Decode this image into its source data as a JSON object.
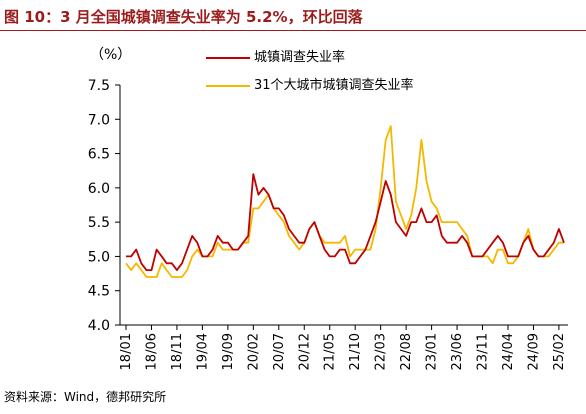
{
  "header": {
    "title": "图 10：3 月全国城镇调查失业率为 5.2%，环比回落"
  },
  "footer": {
    "source": "资料来源：Wind，德邦研究所"
  },
  "colors": {
    "title": "#9c1c1c",
    "series_urban": "#c00000",
    "series_31city": "#f5b800"
  },
  "chart_data": {
    "type": "line",
    "unit_label": "（%）",
    "ylim": [
      4.0,
      7.5
    ],
    "yticks": [
      "4.0",
      "4.5",
      "5.0",
      "5.5",
      "6.0",
      "6.5",
      "7.0",
      "7.5"
    ],
    "xticks": [
      "18/01",
      "18/06",
      "18/11",
      "19/04",
      "19/09",
      "20/02",
      "20/07",
      "20/12",
      "21/05",
      "21/10",
      "22/03",
      "22/08",
      "23/01",
      "23/06",
      "23/11",
      "24/04",
      "24/09",
      "25/02"
    ],
    "legend_position": "top-right",
    "grid": false,
    "x": [
      "18/01",
      "18/02",
      "18/03",
      "18/04",
      "18/05",
      "18/06",
      "18/07",
      "18/08",
      "18/09",
      "18/10",
      "18/11",
      "18/12",
      "19/01",
      "19/02",
      "19/03",
      "19/04",
      "19/05",
      "19/06",
      "19/07",
      "19/08",
      "19/09",
      "19/10",
      "19/11",
      "19/12",
      "20/01",
      "20/02",
      "20/03",
      "20/04",
      "20/05",
      "20/06",
      "20/07",
      "20/08",
      "20/09",
      "20/10",
      "20/11",
      "20/12",
      "21/01",
      "21/02",
      "21/03",
      "21/04",
      "21/05",
      "21/06",
      "21/07",
      "21/08",
      "21/09",
      "21/10",
      "21/11",
      "21/12",
      "22/01",
      "22/02",
      "22/03",
      "22/04",
      "22/05",
      "22/06",
      "22/07",
      "22/08",
      "22/09",
      "22/10",
      "22/11",
      "22/12",
      "23/01",
      "23/02",
      "23/03",
      "23/04",
      "23/05",
      "23/06",
      "23/07",
      "23/08",
      "23/09",
      "23/10",
      "23/11",
      "23/12",
      "24/01",
      "24/02",
      "24/03",
      "24/04",
      "24/05",
      "24/06",
      "24/07",
      "24/08",
      "24/09",
      "24/10",
      "24/11",
      "24/12",
      "25/01",
      "25/02",
      "25/03"
    ],
    "series": [
      {
        "name": "城镇调查失业率",
        "color": "#c00000",
        "values": [
          5.0,
          5.0,
          5.1,
          4.9,
          4.8,
          4.8,
          5.1,
          5.0,
          4.9,
          4.9,
          4.8,
          4.9,
          5.1,
          5.3,
          5.2,
          5.0,
          5.0,
          5.1,
          5.3,
          5.2,
          5.2,
          5.1,
          5.1,
          5.2,
          5.3,
          6.2,
          5.9,
          6.0,
          5.9,
          5.7,
          5.7,
          5.6,
          5.4,
          5.3,
          5.2,
          5.2,
          5.4,
          5.5,
          5.3,
          5.1,
          5.0,
          5.0,
          5.1,
          5.1,
          4.9,
          4.9,
          5.0,
          5.1,
          5.3,
          5.5,
          5.8,
          6.1,
          5.9,
          5.5,
          5.4,
          5.3,
          5.5,
          5.5,
          5.7,
          5.5,
          5.5,
          5.6,
          5.3,
          5.2,
          5.2,
          5.2,
          5.3,
          5.2,
          5.0,
          5.0,
          5.0,
          5.1,
          5.2,
          5.3,
          5.2,
          5.0,
          5.0,
          5.0,
          5.2,
          5.3,
          5.1,
          5.0,
          5.0,
          5.1,
          5.2,
          5.4,
          5.2
        ]
      },
      {
        "name": "31个大城市城镇调查失业率",
        "color": "#f5b800",
        "values": [
          4.9,
          4.8,
          4.9,
          4.8,
          4.7,
          4.7,
          4.7,
          4.9,
          4.8,
          4.7,
          4.7,
          4.7,
          4.8,
          5.0,
          5.1,
          5.0,
          5.0,
          5.0,
          5.2,
          5.1,
          5.1,
          5.1,
          5.1,
          5.2,
          5.2,
          5.7,
          5.7,
          5.8,
          5.9,
          5.7,
          5.6,
          5.5,
          5.3,
          5.2,
          5.1,
          5.2,
          5.4,
          5.5,
          5.3,
          5.2,
          5.2,
          5.2,
          5.2,
          5.3,
          5.0,
          5.1,
          5.1,
          5.1,
          5.1,
          5.4,
          6.0,
          6.7,
          6.9,
          5.8,
          5.6,
          5.4,
          5.6,
          6.0,
          6.7,
          6.1,
          5.8,
          5.7,
          5.5,
          5.5,
          5.5,
          5.5,
          5.4,
          5.3,
          5.0,
          5.0,
          5.0,
          5.0,
          4.9,
          5.1,
          5.1,
          4.9,
          4.9,
          5.0,
          5.2,
          5.4,
          5.1,
          5.0,
          5.0,
          5.0,
          5.1,
          5.2,
          5.2
        ]
      }
    ]
  }
}
